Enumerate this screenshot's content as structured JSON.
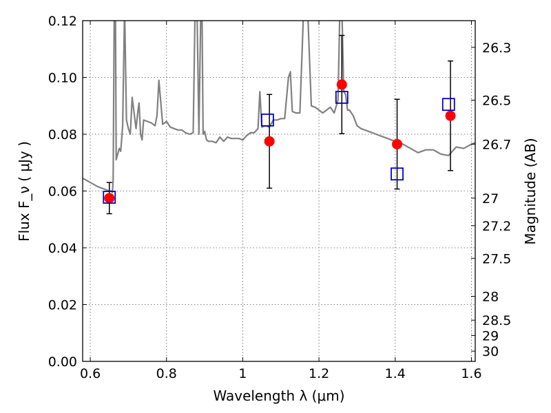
{
  "chart_data": {
    "type": "scatter",
    "xlabel": "Wavelength  λ (μm)",
    "ylabel": "Flux  F_ν  ( μJy )",
    "ylabel_right": "Magnitude (AB)",
    "xlim": [
      0.58,
      1.61
    ],
    "ylim": [
      0.0,
      0.12
    ],
    "grid": true,
    "xticks": [
      {
        "value": 0.6,
        "label": "0.6"
      },
      {
        "value": 0.8,
        "label": "0.8"
      },
      {
        "value": 1.0,
        "label": "1"
      },
      {
        "value": 1.2,
        "label": "1.2"
      },
      {
        "value": 1.4,
        "label": "1.4"
      },
      {
        "value": 1.6,
        "label": "1.6"
      }
    ],
    "yticks": [
      {
        "value": 0.0,
        "label": "0.00"
      },
      {
        "value": 0.02,
        "label": "0.02"
      },
      {
        "value": 0.04,
        "label": "0.04"
      },
      {
        "value": 0.06,
        "label": "0.06"
      },
      {
        "value": 0.08,
        "label": "0.08"
      },
      {
        "value": 0.1,
        "label": "0.10"
      },
      {
        "value": 0.12,
        "label": "0.12"
      }
    ],
    "right_ticks": [
      {
        "flux": 0.1106,
        "label": "26.3"
      },
      {
        "flux": 0.092,
        "label": "26.5"
      },
      {
        "flux": 0.0765,
        "label": "26.7"
      },
      {
        "flux": 0.0575,
        "label": "27"
      },
      {
        "flux": 0.0478,
        "label": "27.2"
      },
      {
        "flux": 0.0363,
        "label": "27.5"
      },
      {
        "flux": 0.0229,
        "label": "28"
      },
      {
        "flux": 0.0145,
        "label": "28.5"
      },
      {
        "flux": 0.0091,
        "label": "29"
      },
      {
        "flux": 0.0036,
        "label": "30"
      }
    ],
    "series": [
      {
        "kind": "line",
        "color": "#808080",
        "x": [
          0.58,
          0.6,
          0.62,
          0.64,
          0.65,
          0.655,
          0.658,
          0.66,
          0.663,
          0.666,
          0.668,
          0.672,
          0.676,
          0.68,
          0.685,
          0.69,
          0.695,
          0.7,
          0.705,
          0.71,
          0.72,
          0.725,
          0.728,
          0.732,
          0.736,
          0.74,
          0.75,
          0.76,
          0.765,
          0.77,
          0.775,
          0.78,
          0.79,
          0.8,
          0.81,
          0.82,
          0.83,
          0.84,
          0.85,
          0.86,
          0.87,
          0.875,
          0.88,
          0.885,
          0.89,
          0.893,
          0.896,
          0.9,
          0.905,
          0.91,
          0.92,
          0.93,
          0.94,
          0.95,
          0.96,
          0.97,
          0.98,
          0.99,
          1.0,
          1.01,
          1.02,
          1.03,
          1.04,
          1.045,
          1.05,
          1.06,
          1.07,
          1.08,
          1.09,
          1.1,
          1.11,
          1.12,
          1.125,
          1.13,
          1.14,
          1.15,
          1.16,
          1.17,
          1.18,
          1.19,
          1.2,
          1.21,
          1.22,
          1.23,
          1.24,
          1.25,
          1.255,
          1.26,
          1.265,
          1.27,
          1.275,
          1.28,
          1.29,
          1.3,
          1.31,
          1.32,
          1.34,
          1.36,
          1.38,
          1.4,
          1.42,
          1.44,
          1.46,
          1.48,
          1.5,
          1.52,
          1.54,
          1.56,
          1.58,
          1.6,
          1.61
        ],
        "y": [
          0.0645,
          0.063,
          0.0615,
          0.0605,
          0.06,
          0.06,
          0.0595,
          0.064,
          0.125,
          0.125,
          0.071,
          0.073,
          0.075,
          0.074,
          0.083,
          0.125,
          0.085,
          0.082,
          0.08,
          0.093,
          0.082,
          0.088,
          0.091,
          0.08,
          0.078,
          0.085,
          0.0845,
          0.084,
          0.0835,
          0.083,
          0.0865,
          0.099,
          0.0835,
          0.0845,
          0.0825,
          0.082,
          0.0815,
          0.0815,
          0.0805,
          0.08,
          0.0805,
          0.125,
          0.125,
          0.08,
          0.125,
          0.125,
          0.08,
          0.081,
          0.078,
          0.0775,
          0.0775,
          0.077,
          0.079,
          0.0775,
          0.079,
          0.0785,
          0.0785,
          0.0785,
          0.078,
          0.0795,
          0.0805,
          0.0805,
          0.082,
          0.095,
          0.0825,
          0.083,
          0.0825,
          0.085,
          0.085,
          0.0855,
          0.0855,
          0.1,
          0.102,
          0.088,
          0.0875,
          0.0875,
          0.125,
          0.125,
          0.09,
          0.0895,
          0.0885,
          0.0875,
          0.0885,
          0.0895,
          0.0875,
          0.092,
          0.125,
          0.125,
          0.095,
          0.094,
          0.0885,
          0.0885,
          0.0865,
          0.083,
          0.082,
          0.0815,
          0.0805,
          0.0795,
          0.0785,
          0.0775,
          0.0765,
          0.075,
          0.0735,
          0.0745,
          0.0745,
          0.073,
          0.0725,
          0.0755,
          0.075,
          0.0765,
          0.077
        ]
      },
      {
        "kind": "points",
        "marker": "circle",
        "color": "#ff0000",
        "points": [
          {
            "x": 0.65,
            "y": 0.0575,
            "err": 0.0055
          },
          {
            "x": 1.07,
            "y": 0.0775,
            "err": 0.0165
          },
          {
            "x": 1.26,
            "y": 0.0975,
            "err": 0.0173
          },
          {
            "x": 1.405,
            "y": 0.0765,
            "err": 0.0158
          },
          {
            "x": 1.545,
            "y": 0.0865,
            "err": 0.0193
          }
        ]
      },
      {
        "kind": "points",
        "marker": "square-open",
        "color": "#0000cc",
        "points": [
          {
            "x": 0.65,
            "y": 0.0578
          },
          {
            "x": 1.065,
            "y": 0.085
          },
          {
            "x": 1.26,
            "y": 0.093
          },
          {
            "x": 1.405,
            "y": 0.066
          },
          {
            "x": 1.54,
            "y": 0.0905
          }
        ]
      }
    ]
  }
}
